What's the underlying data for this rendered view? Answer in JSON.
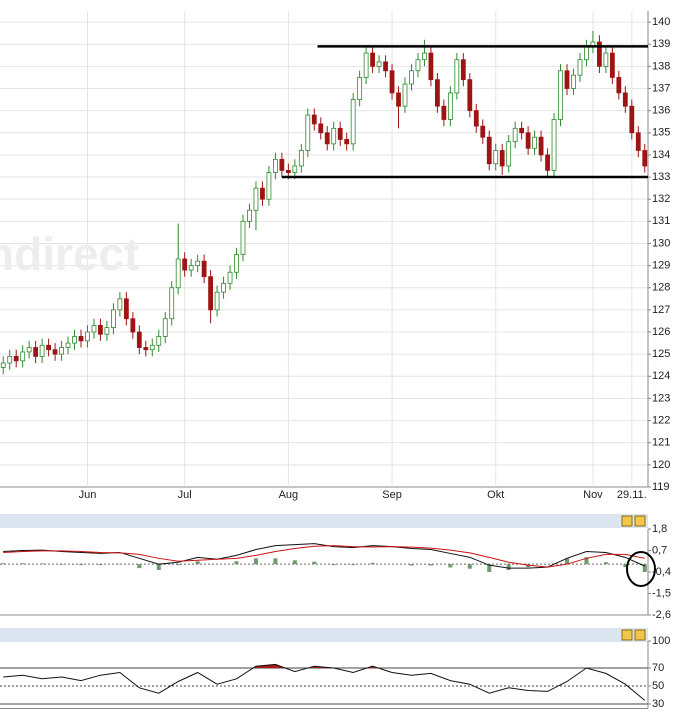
{
  "chart_data": [
    {
      "type": "candlestick",
      "watermark": "ndirect",
      "xlim": [
        -0.5,
        99.5
      ],
      "xticks": [
        {
          "value": 13,
          "label": "Jun"
        },
        {
          "value": 28,
          "label": "Jul"
        },
        {
          "value": 44,
          "label": "Aug"
        },
        {
          "value": 60,
          "label": "Sep"
        },
        {
          "value": 76,
          "label": "Okt"
        },
        {
          "value": 91,
          "label": "Nov"
        },
        {
          "value": 97,
          "label": "29.11."
        }
      ],
      "ylim": [
        119,
        140.5
      ],
      "yticks": [
        119,
        120,
        121,
        122,
        123,
        124,
        125,
        126,
        127,
        128,
        129,
        130,
        131,
        132,
        133,
        134,
        135,
        136,
        137,
        138,
        139,
        140
      ],
      "grid": true,
      "up_color": "#2e8b2e",
      "down_color": "#9e1414",
      "open": [
        124.4,
        124.6,
        124.9,
        124.7,
        125.1,
        125.3,
        124.9,
        125.4,
        125.2,
        125.0,
        125.3,
        125.5,
        125.8,
        125.6,
        126.0,
        126.3,
        125.9,
        126.2,
        127.0,
        127.5,
        126.6,
        126.0,
        125.3,
        125.2,
        125.4,
        125.8,
        126.6,
        128.0,
        129.3,
        128.8,
        129.0,
        129.2,
        128.5,
        127.0,
        127.8,
        128.2,
        128.7,
        129.5,
        131.0,
        131.5,
        132.5,
        132.0,
        133.2,
        133.8,
        133.3,
        133.2,
        133.5,
        134.2,
        135.8,
        135.4,
        135.0,
        134.5,
        135.2,
        134.7,
        134.5,
        136.5,
        137.5,
        138.6,
        138.0,
        138.2,
        137.8,
        136.8,
        136.2,
        137.2,
        137.8,
        138.3,
        138.6,
        137.4,
        136.2,
        135.6,
        136.8,
        138.3,
        137.4,
        136.0,
        135.3,
        134.8,
        133.6,
        134.2,
        133.5,
        134.6,
        135.2,
        135.0,
        134.3,
        134.8,
        134.0,
        133.3,
        135.6,
        137.8,
        137.0,
        137.6,
        138.3,
        138.9,
        139.1,
        138.0,
        138.6,
        137.5,
        136.8,
        136.2,
        135.0,
        134.2
      ],
      "high": [
        124.9,
        125.2,
        125.2,
        125.4,
        125.6,
        125.6,
        125.7,
        125.7,
        125.5,
        125.6,
        125.8,
        126.1,
        126.1,
        126.3,
        126.6,
        126.6,
        126.5,
        127.3,
        127.8,
        127.8,
        126.9,
        126.3,
        125.6,
        125.7,
        126.1,
        126.9,
        128.3,
        130.9,
        129.6,
        129.3,
        129.5,
        129.5,
        128.8,
        128.1,
        128.5,
        129.0,
        129.8,
        131.3,
        131.8,
        132.8,
        132.8,
        133.5,
        134.1,
        134.1,
        133.6,
        133.8,
        134.5,
        136.1,
        136.1,
        135.7,
        135.3,
        135.5,
        135.5,
        135.0,
        136.8,
        137.8,
        138.9,
        138.9,
        138.5,
        138.5,
        138.1,
        137.1,
        137.5,
        138.1,
        138.6,
        139.2,
        138.9,
        137.7,
        136.5,
        137.1,
        138.6,
        138.6,
        137.7,
        136.3,
        135.6,
        135.1,
        134.5,
        134.5,
        134.9,
        135.5,
        135.5,
        135.3,
        135.1,
        135.1,
        134.3,
        135.9,
        138.1,
        138.1,
        137.9,
        138.6,
        139.2,
        139.6,
        139.4,
        138.9,
        138.9,
        137.8,
        137.1,
        136.5,
        135.3,
        134.5
      ],
      "low": [
        124.1,
        124.3,
        124.4,
        124.4,
        124.8,
        124.6,
        124.6,
        124.9,
        124.7,
        124.7,
        125.0,
        125.2,
        125.3,
        125.3,
        125.7,
        125.6,
        125.6,
        125.9,
        126.7,
        126.3,
        125.7,
        125.0,
        124.9,
        124.9,
        125.1,
        125.5,
        126.3,
        127.7,
        128.5,
        128.5,
        128.7,
        128.2,
        126.4,
        126.7,
        127.5,
        127.9,
        128.4,
        129.2,
        130.7,
        130.6,
        131.7,
        131.7,
        132.9,
        133.0,
        132.9,
        132.9,
        133.2,
        133.9,
        135.1,
        134.7,
        134.2,
        134.2,
        134.4,
        134.2,
        134.2,
        136.2,
        137.2,
        137.7,
        137.7,
        137.5,
        136.5,
        135.2,
        135.9,
        136.9,
        137.5,
        138.0,
        137.1,
        135.9,
        135.3,
        135.3,
        136.5,
        137.1,
        135.7,
        135.0,
        134.5,
        133.3,
        133.3,
        133.1,
        133.2,
        134.3,
        134.7,
        134.0,
        134.0,
        133.7,
        133.0,
        133.0,
        135.3,
        136.7,
        136.7,
        137.3,
        138.0,
        138.6,
        137.7,
        137.7,
        137.2,
        136.5,
        135.9,
        134.7,
        133.9,
        133.2
      ],
      "close": [
        124.6,
        124.9,
        124.7,
        125.1,
        125.3,
        124.9,
        125.4,
        125.2,
        125.0,
        125.3,
        125.5,
        125.8,
        125.6,
        126.0,
        126.3,
        125.9,
        126.2,
        127.0,
        127.5,
        126.6,
        126.0,
        125.3,
        125.2,
        125.4,
        125.8,
        126.6,
        128.0,
        129.3,
        128.8,
        129.0,
        129.2,
        128.5,
        127.0,
        127.8,
        128.2,
        128.7,
        129.5,
        131.0,
        131.5,
        132.5,
        132.0,
        133.2,
        133.8,
        133.3,
        133.2,
        133.5,
        134.2,
        135.8,
        135.4,
        135.0,
        134.5,
        135.2,
        134.7,
        134.5,
        136.5,
        137.5,
        138.6,
        138.0,
        138.2,
        137.8,
        136.8,
        136.2,
        137.2,
        137.8,
        138.3,
        138.6,
        137.4,
        136.2,
        135.6,
        136.8,
        138.3,
        137.4,
        136.0,
        135.3,
        134.8,
        133.6,
        134.2,
        133.5,
        134.6,
        135.2,
        135.0,
        134.3,
        134.8,
        134.0,
        133.3,
        135.6,
        137.8,
        137.0,
        137.6,
        138.3,
        138.9,
        139.1,
        138.0,
        138.6,
        137.5,
        136.8,
        136.2,
        135.0,
        134.2,
        133.5
      ],
      "trend_lines": [
        {
          "x": [
            48.5,
            99.5
          ],
          "y": [
            138.9,
            138.9
          ]
        },
        {
          "x": [
            43,
            99.5
          ],
          "y": [
            133.0,
            133.0
          ]
        }
      ]
    },
    {
      "type": "macd",
      "xlim": [
        -0.5,
        99.5
      ],
      "ylim": [
        -2.6,
        1.8
      ],
      "yticks": [
        {
          "value": 1.8,
          "label": "1,8"
        },
        {
          "value": 0.7,
          "label": "0,7"
        },
        {
          "value": -0.4,
          "label": "-0,4"
        },
        {
          "value": -1.5,
          "label": "-1,5"
        },
        {
          "value": -2.6,
          "label": "-2,6"
        }
      ],
      "x": [
        0,
        3,
        6,
        9,
        12,
        15,
        18,
        21,
        24,
        27,
        30,
        33,
        36,
        39,
        42,
        45,
        48,
        51,
        54,
        57,
        60,
        63,
        66,
        69,
        72,
        75,
        78,
        81,
        84,
        87,
        90,
        93,
        96,
        99
      ],
      "series": [
        {
          "color": "#111111",
          "values": [
            0.65,
            0.7,
            0.72,
            0.65,
            0.6,
            0.55,
            0.6,
            0.3,
            0.0,
            0.1,
            0.35,
            0.25,
            0.45,
            0.75,
            0.95,
            1.0,
            1.05,
            0.9,
            0.85,
            0.95,
            0.9,
            0.8,
            0.75,
            0.55,
            0.35,
            -0.05,
            -0.2,
            -0.2,
            -0.15,
            0.3,
            0.65,
            0.6,
            0.35,
            -0.1
          ]
        },
        {
          "color": "#cc1111",
          "values": [
            0.6,
            0.65,
            0.68,
            0.68,
            0.65,
            0.6,
            0.58,
            0.5,
            0.3,
            0.15,
            0.2,
            0.25,
            0.3,
            0.45,
            0.65,
            0.8,
            0.92,
            0.95,
            0.9,
            0.88,
            0.9,
            0.87,
            0.82,
            0.72,
            0.58,
            0.35,
            0.1,
            -0.05,
            -0.15,
            0.0,
            0.3,
            0.5,
            0.5,
            0.3
          ]
        }
      ],
      "histogram": {
        "color": "#6f9a6f",
        "values": [
          0.05,
          0.05,
          0.04,
          -0.03,
          -0.05,
          -0.05,
          0.02,
          -0.2,
          -0.3,
          -0.05,
          0.15,
          0,
          0.15,
          0.3,
          0.3,
          0.2,
          0.13,
          -0.05,
          -0.05,
          0.07,
          0,
          -0.07,
          -0.07,
          -0.17,
          -0.23,
          -0.4,
          -0.3,
          -0.15,
          0,
          0.3,
          0.35,
          0.1,
          -0.15,
          -0.4
        ]
      }
    },
    {
      "type": "rsi",
      "xlim": [
        -0.5,
        99.5
      ],
      "ylim": [
        25,
        100
      ],
      "yticks": [
        30,
        50,
        70,
        100
      ],
      "reference_lines": [
        {
          "value": 70
        },
        {
          "value": 50,
          "dashed": true
        },
        {
          "value": 30
        }
      ],
      "overbought": 70,
      "overbought_color": "#b01818",
      "x": [
        0,
        3,
        6,
        9,
        12,
        15,
        18,
        21,
        24,
        27,
        30,
        33,
        36,
        39,
        42,
        45,
        48,
        51,
        54,
        57,
        60,
        63,
        66,
        69,
        72,
        75,
        78,
        81,
        84,
        87,
        90,
        93,
        96,
        99
      ],
      "series": [
        {
          "color": "#111111",
          "values": [
            60,
            62,
            58,
            60,
            56,
            62,
            65,
            48,
            42,
            55,
            65,
            52,
            58,
            72,
            74,
            66,
            72,
            70,
            65,
            72,
            65,
            62,
            64,
            56,
            52,
            42,
            48,
            45,
            44,
            55,
            70,
            64,
            52,
            34
          ]
        }
      ]
    }
  ]
}
